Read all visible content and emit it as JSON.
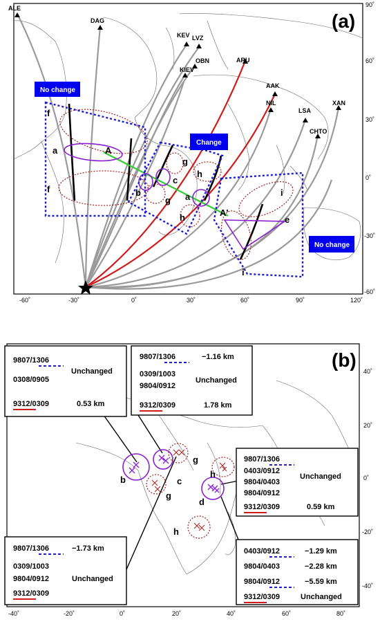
{
  "panel_a": {
    "label": "(a)",
    "lon_ticks": [
      "-60˚",
      "-30˚",
      "0˚",
      "30˚",
      "60˚",
      "90˚",
      "120˚"
    ],
    "lat_ticks": [
      "90˚",
      "60˚",
      "30˚",
      "0˚",
      "-30˚",
      "-60˚"
    ],
    "stations": [
      "ALE",
      "DAG",
      "KEV",
      "LVZ",
      "OBN",
      "KIEV",
      "ARU",
      "AAK",
      "NIL",
      "LSA",
      "XAN",
      "CHTO"
    ],
    "badges": {
      "left": "No change",
      "center": "Change",
      "right": "No change"
    },
    "region_labels": [
      "f",
      "a",
      "A",
      "f",
      "g",
      "h",
      "c",
      "b",
      "g",
      "a",
      "h",
      "A'",
      "i",
      "e",
      "i"
    ]
  },
  "panel_b": {
    "label": "(b)",
    "lon_ticks": [
      "-40˚",
      "-20˚",
      "0˚",
      "20˚",
      "40˚",
      "60˚",
      "80˚"
    ],
    "lat_ticks": [
      "40˚",
      "20˚",
      "0˚",
      "-20˚",
      "-40˚"
    ],
    "region_labels": [
      "g",
      "c",
      "b",
      "g",
      "h",
      "d",
      "h"
    ],
    "box_tl": {
      "rows": [
        {
          "pair": "9807/1306",
          "value": ""
        },
        {
          "pair": "0308/0905",
          "value": ""
        },
        {
          "pair": "9312/0309",
          "value": "0.53 km"
        }
      ],
      "status": "Unchanged"
    },
    "box_tr": {
      "rows": [
        {
          "pair": "9807/1306",
          "value": "−1.16 km"
        },
        {
          "pair": "0309/1003",
          "value": ""
        },
        {
          "pair": "9804/0912",
          "value": ""
        },
        {
          "pair": "9312/0309",
          "value": "1.78 km"
        }
      ],
      "status": "Unchanged"
    },
    "box_mr": {
      "rows": [
        {
          "pair": "9807/1306",
          "value": ""
        },
        {
          "pair": "0403/0912",
          "value": ""
        },
        {
          "pair": "9804/0403",
          "value": ""
        },
        {
          "pair": "9804/0912",
          "value": ""
        },
        {
          "pair": "9312/0309",
          "value": "0.59 km"
        }
      ],
      "status": "Unchanged"
    },
    "box_bl": {
      "rows": [
        {
          "pair": "9807/1306",
          "value": "−1.73 km"
        },
        {
          "pair": "0309/1003",
          "value": ""
        },
        {
          "pair": "9804/0912",
          "value": ""
        },
        {
          "pair": "9312/0309",
          "value": ""
        }
      ],
      "status": "Unchanged"
    },
    "box_br": {
      "rows": [
        {
          "pair": "0403/0912",
          "value": "−1.29 km"
        },
        {
          "pair": "9804/0403",
          "value": "−2.28 km"
        },
        {
          "pair": "9804/0912",
          "value": "−5.59 km"
        },
        {
          "pair": "9312/0309",
          "value": "Unchanged"
        }
      ]
    }
  }
}
